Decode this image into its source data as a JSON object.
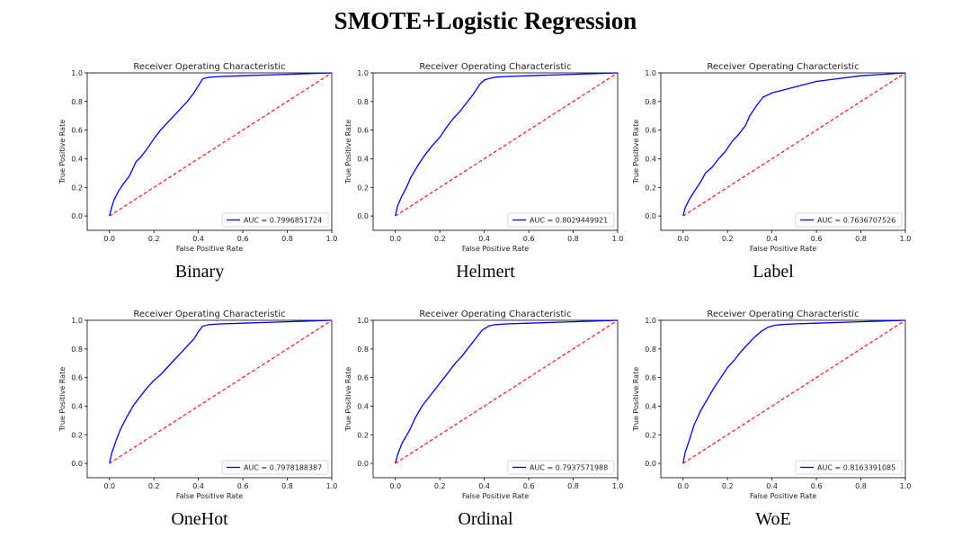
{
  "figure": {
    "title": "SMOTE+Logistic Regression"
  },
  "chart_data": [
    {
      "type": "line",
      "caption": "Binary",
      "title": "Receiver Operating Characteristic",
      "xlabel": "False Positive Rate",
      "ylabel": "True Positive Rate",
      "xlim": [
        -0.1,
        1.0
      ],
      "ylim": [
        -0.1,
        1.0
      ],
      "xticks": [
        "0.0",
        "0.2",
        "0.4",
        "0.6",
        "0.8",
        "1.0"
      ],
      "yticks": [
        "0.0",
        "0.2",
        "0.4",
        "0.6",
        "0.8",
        "1.0"
      ],
      "grid": false,
      "legend": "lower-right",
      "series": [
        {
          "name": "AUC = 0.7996851724",
          "color": "#0000ff",
          "style": "solid",
          "x": [
            0,
            0.01,
            0.02,
            0.04,
            0.06,
            0.09,
            0.12,
            0.14,
            0.17,
            0.2,
            0.23,
            0.26,
            0.29,
            0.32,
            0.35,
            0.38,
            0.4,
            0.42,
            0.45,
            0.5,
            0.6,
            0.7,
            0.8,
            0.9,
            1.0
          ],
          "y": [
            0,
            0.06,
            0.11,
            0.17,
            0.22,
            0.28,
            0.38,
            0.41,
            0.47,
            0.54,
            0.6,
            0.65,
            0.7,
            0.75,
            0.8,
            0.86,
            0.91,
            0.96,
            0.97,
            0.975,
            0.98,
            0.985,
            0.99,
            0.995,
            1.0
          ]
        },
        {
          "name": "",
          "color": "#ff0000",
          "style": "dashed",
          "x": [
            0,
            1
          ],
          "y": [
            0,
            1
          ]
        }
      ]
    },
    {
      "type": "line",
      "caption": "Helmert",
      "title": "Receiver Operating Characteristic",
      "xlabel": "False Positive Rate",
      "ylabel": "True Positive Rate",
      "xlim": [
        -0.1,
        1.0
      ],
      "ylim": [
        -0.1,
        1.0
      ],
      "xticks": [
        "0.0",
        "0.2",
        "0.4",
        "0.6",
        "0.8",
        "1.0"
      ],
      "yticks": [
        "0.0",
        "0.2",
        "0.4",
        "0.6",
        "0.8",
        "1.0"
      ],
      "grid": false,
      "legend": "lower-right",
      "series": [
        {
          "name": "AUC = 0.8029449921",
          "color": "#0000ff",
          "style": "solid",
          "x": [
            0,
            0.01,
            0.03,
            0.05,
            0.07,
            0.1,
            0.13,
            0.16,
            0.2,
            0.23,
            0.26,
            0.29,
            0.32,
            0.35,
            0.38,
            0.4,
            0.42,
            0.45,
            0.5,
            0.6,
            0.7,
            0.8,
            0.9,
            1.0
          ],
          "y": [
            0,
            0.07,
            0.14,
            0.2,
            0.27,
            0.35,
            0.42,
            0.48,
            0.55,
            0.62,
            0.68,
            0.73,
            0.79,
            0.85,
            0.92,
            0.95,
            0.96,
            0.97,
            0.975,
            0.98,
            0.985,
            0.99,
            0.995,
            1.0
          ]
        },
        {
          "name": "",
          "color": "#ff0000",
          "style": "dashed",
          "x": [
            0,
            1
          ],
          "y": [
            0,
            1
          ]
        }
      ]
    },
    {
      "type": "line",
      "caption": "Label",
      "title": "Receiver Operating Characteristic",
      "xlabel": "False Positive Rate",
      "ylabel": "True Positive Rate",
      "xlim": [
        -0.1,
        1.0
      ],
      "ylim": [
        -0.1,
        1.0
      ],
      "xticks": [
        "0.0",
        "0.2",
        "0.4",
        "0.6",
        "0.8",
        "1.0"
      ],
      "yticks": [
        "0.0",
        "0.2",
        "0.4",
        "0.6",
        "0.8",
        "1.0"
      ],
      "grid": false,
      "legend": "lower-right",
      "series": [
        {
          "name": "AUC = 0.7636707526",
          "color": "#0000ff",
          "style": "solid",
          "x": [
            0,
            0.01,
            0.03,
            0.05,
            0.08,
            0.1,
            0.13,
            0.16,
            0.19,
            0.22,
            0.25,
            0.28,
            0.3,
            0.33,
            0.36,
            0.4,
            0.45,
            0.5,
            0.55,
            0.6,
            0.7,
            0.8,
            0.9,
            1.0
          ],
          "y": [
            0,
            0.06,
            0.12,
            0.17,
            0.24,
            0.3,
            0.34,
            0.4,
            0.45,
            0.52,
            0.57,
            0.63,
            0.7,
            0.77,
            0.83,
            0.86,
            0.88,
            0.9,
            0.92,
            0.94,
            0.96,
            0.98,
            0.99,
            1.0
          ]
        },
        {
          "name": "",
          "color": "#ff0000",
          "style": "dashed",
          "x": [
            0,
            1
          ],
          "y": [
            0,
            1
          ]
        }
      ]
    },
    {
      "type": "line",
      "caption": "OneHot",
      "title": "Receiver Operating Characteristic",
      "xlabel": "False Positive Rate",
      "ylabel": "True Positive Rate",
      "xlim": [
        -0.1,
        1.0
      ],
      "ylim": [
        -0.1,
        1.0
      ],
      "xticks": [
        "0.0",
        "0.2",
        "0.4",
        "0.6",
        "0.8",
        "1.0"
      ],
      "yticks": [
        "0.0",
        "0.2",
        "0.4",
        "0.6",
        "0.8",
        "1.0"
      ],
      "grid": false,
      "legend": "lower-right",
      "series": [
        {
          "name": "AUC = 0.7978188387",
          "color": "#0000ff",
          "style": "solid",
          "x": [
            0,
            0.01,
            0.03,
            0.05,
            0.08,
            0.11,
            0.14,
            0.17,
            0.2,
            0.23,
            0.26,
            0.29,
            0.32,
            0.35,
            0.38,
            0.4,
            0.42,
            0.45,
            0.5,
            0.6,
            0.7,
            0.8,
            0.9,
            1.0
          ],
          "y": [
            0,
            0.07,
            0.16,
            0.24,
            0.33,
            0.41,
            0.47,
            0.53,
            0.58,
            0.62,
            0.67,
            0.72,
            0.77,
            0.82,
            0.87,
            0.92,
            0.96,
            0.97,
            0.975,
            0.98,
            0.985,
            0.99,
            0.995,
            1.0
          ]
        },
        {
          "name": "",
          "color": "#ff0000",
          "style": "dashed",
          "x": [
            0,
            1
          ],
          "y": [
            0,
            1
          ]
        }
      ]
    },
    {
      "type": "line",
      "caption": "Ordinal",
      "title": "Receiver Operating Characteristic",
      "xlabel": "False Positive Rate",
      "ylabel": "True Positive Rate",
      "xlim": [
        -0.1,
        1.0
      ],
      "ylim": [
        -0.1,
        1.0
      ],
      "xticks": [
        "0.0",
        "0.2",
        "0.4",
        "0.6",
        "0.8",
        "1.0"
      ],
      "yticks": [
        "0.0",
        "0.2",
        "0.4",
        "0.6",
        "0.8",
        "1.0"
      ],
      "grid": false,
      "legend": "lower-right",
      "series": [
        {
          "name": "AUC = 0.7937571988",
          "color": "#0000ff",
          "style": "solid",
          "x": [
            0,
            0.01,
            0.03,
            0.06,
            0.09,
            0.12,
            0.15,
            0.18,
            0.21,
            0.24,
            0.27,
            0.3,
            0.33,
            0.36,
            0.39,
            0.42,
            0.45,
            0.5,
            0.6,
            0.7,
            0.8,
            0.9,
            1.0
          ],
          "y": [
            0,
            0.06,
            0.14,
            0.22,
            0.32,
            0.4,
            0.46,
            0.52,
            0.58,
            0.64,
            0.7,
            0.75,
            0.81,
            0.87,
            0.93,
            0.96,
            0.97,
            0.975,
            0.98,
            0.985,
            0.99,
            0.995,
            1.0
          ]
        },
        {
          "name": "",
          "color": "#ff0000",
          "style": "dashed",
          "x": [
            0,
            1
          ],
          "y": [
            0,
            1
          ]
        }
      ]
    },
    {
      "type": "line",
      "caption": "WoE",
      "title": "Receiver Operating Characteristic",
      "xlabel": "False Positive Rate",
      "ylabel": "True Positive Rate",
      "xlim": [
        -0.1,
        1.0
      ],
      "ylim": [
        -0.1,
        1.0
      ],
      "xticks": [
        "0.0",
        "0.2",
        "0.4",
        "0.6",
        "0.8",
        "1.0"
      ],
      "yticks": [
        "0.0",
        "0.2",
        "0.4",
        "0.6",
        "0.8",
        "1.0"
      ],
      "grid": false,
      "legend": "lower-right",
      "series": [
        {
          "name": "AUC = 0.8163391085",
          "color": "#0000ff",
          "style": "solid",
          "x": [
            0,
            0.01,
            0.03,
            0.05,
            0.08,
            0.11,
            0.14,
            0.17,
            0.2,
            0.23,
            0.26,
            0.29,
            0.32,
            0.35,
            0.38,
            0.41,
            0.44,
            0.5,
            0.6,
            0.7,
            0.8,
            0.9,
            1.0
          ],
          "y": [
            0,
            0.08,
            0.17,
            0.27,
            0.37,
            0.45,
            0.53,
            0.6,
            0.67,
            0.72,
            0.78,
            0.83,
            0.88,
            0.92,
            0.95,
            0.965,
            0.97,
            0.975,
            0.98,
            0.985,
            0.99,
            0.995,
            1.0
          ]
        },
        {
          "name": "",
          "color": "#ff0000",
          "style": "dashed",
          "x": [
            0,
            1
          ],
          "y": [
            0,
            1
          ]
        }
      ]
    }
  ]
}
